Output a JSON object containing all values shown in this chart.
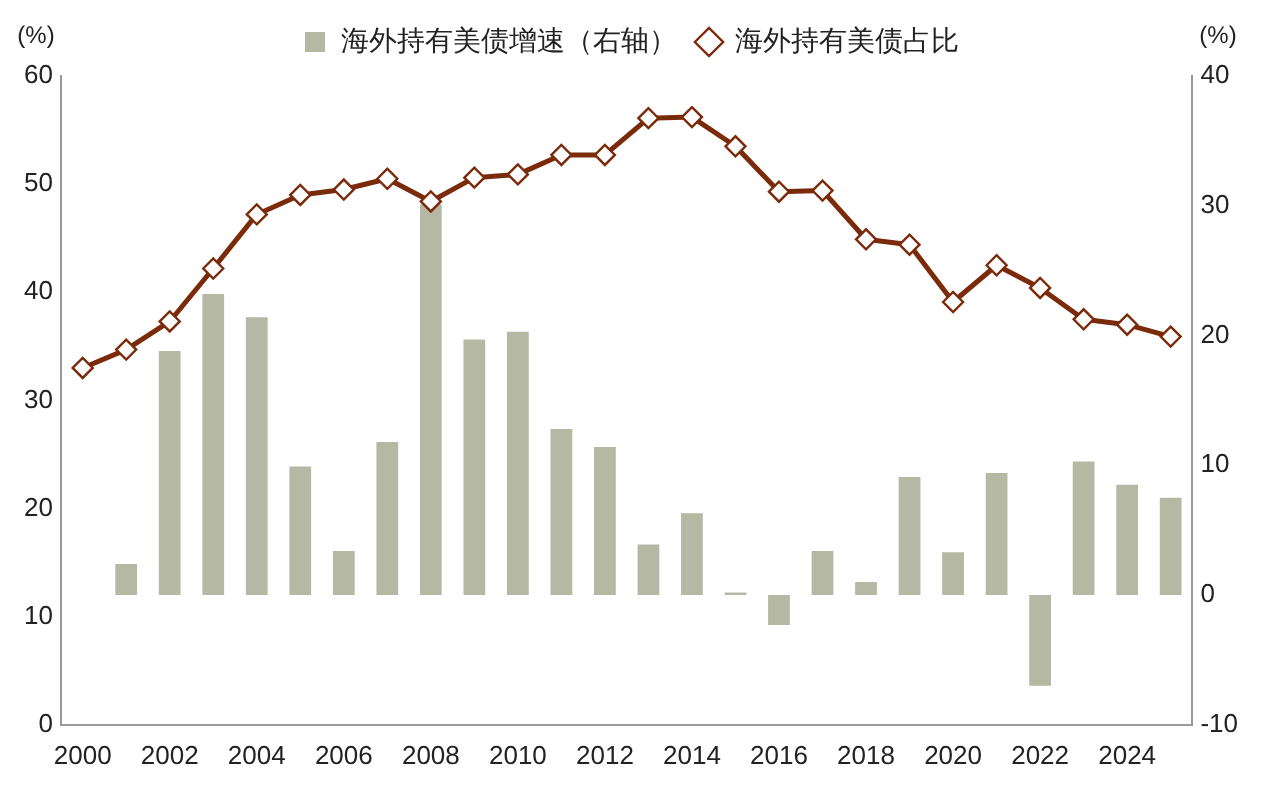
{
  "chart_data": {
    "type": "bar",
    "categories": [
      "2000",
      null,
      "2002",
      null,
      "2004",
      null,
      "2006",
      null,
      "2008",
      null,
      "2010",
      null,
      "2012",
      null,
      "2014",
      null,
      "2016",
      null,
      "2018",
      null,
      "2020",
      null,
      "2022",
      null,
      "2024",
      null
    ],
    "series": [
      {
        "name": "海外持有美债增速（右轴）",
        "axis": "y2",
        "color": "#b5b8a3",
        "values": [
          null,
          2.4,
          18.8,
          23.2,
          21.4,
          9.9,
          3.4,
          11.8,
          30.1,
          19.7,
          20.3,
          12.8,
          11.4,
          3.9,
          6.3,
          0.2,
          -2.3,
          3.4,
          1.0,
          9.1,
          3.3,
          9.4,
          -7.0,
          10.3,
          8.5,
          7.5
        ]
      },
      {
        "name": "海外持有美债占比",
        "type": "line",
        "axis": "y",
        "color": "#7b2a0a",
        "marker": "diamond",
        "values": [
          33.0,
          34.7,
          37.3,
          42.2,
          47.2,
          49.0,
          49.5,
          50.5,
          48.4,
          50.6,
          50.9,
          52.7,
          52.7,
          56.1,
          56.2,
          53.5,
          49.3,
          49.4,
          44.9,
          44.4,
          39.1,
          42.5,
          40.4,
          37.5,
          37.0,
          35.9
        ]
      }
    ],
    "ylabel": "(%)",
    "y2label": "(%)",
    "ylim": [
      0,
      60
    ],
    "yticks": [
      0,
      10,
      20,
      30,
      40,
      50,
      60
    ],
    "y2lim": [
      -10,
      40
    ],
    "y2ticks": [
      -10,
      0,
      10,
      20,
      30,
      40
    ],
    "legend": "top",
    "grid": false
  }
}
